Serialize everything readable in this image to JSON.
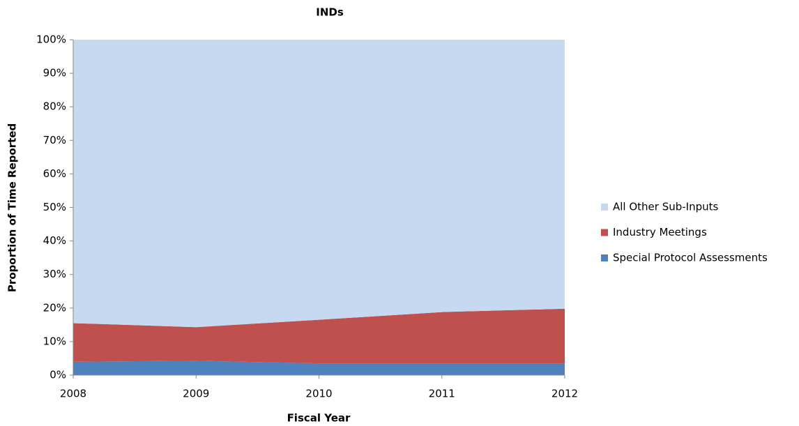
{
  "chart_data": {
    "type": "stacked-area",
    "title": "INDs",
    "x_label": "Fiscal Year",
    "y_label": "Proportion of Time Reported",
    "x": [
      2008,
      2009,
      2010,
      2011,
      2012
    ],
    "xlim": [
      2008,
      2012
    ],
    "xticks": [
      2008,
      2009,
      2010,
      2011,
      2012
    ],
    "ylim": [
      0,
      100
    ],
    "yticks": [
      {
        "value": 0,
        "label": "0%"
      },
      {
        "value": 10,
        "label": "10%"
      },
      {
        "value": 20,
        "label": "20%"
      },
      {
        "value": 30,
        "label": "30%"
      },
      {
        "value": 40,
        "label": "40%"
      },
      {
        "value": 50,
        "label": "50%"
      },
      {
        "value": 60,
        "label": "60%"
      },
      {
        "value": 70,
        "label": "70%"
      },
      {
        "value": 80,
        "label": "80%"
      },
      {
        "value": 90,
        "label": "90%"
      },
      {
        "value": 100,
        "label": "100%"
      }
    ],
    "grid": false,
    "legend": "right",
    "series": [
      {
        "name": "Special Protocol Assessments",
        "color": "#4f81bd",
        "values": [
          4,
          4.3,
          3.5,
          3.5,
          3.5
        ]
      },
      {
        "name": "Industry Meetings",
        "color": "#c0504d",
        "values": [
          11.5,
          10,
          13,
          15.3,
          16.3
        ]
      },
      {
        "name": "All Other Sub-Inputs",
        "color": "#c6d9f1",
        "values": [
          84.5,
          85.7,
          83.5,
          81.2,
          80.2
        ]
      }
    ]
  }
}
